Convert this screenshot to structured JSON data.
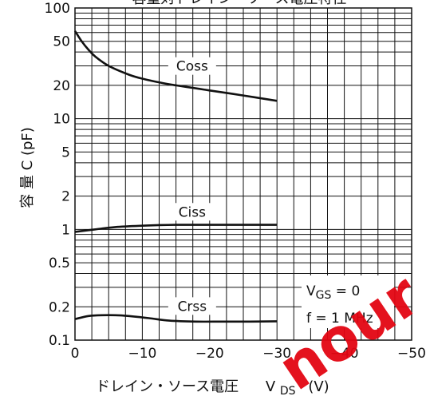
{
  "chart_data": {
    "type": "line",
    "title": "容量対ドレイン・ソース電圧特性",
    "xlabel": "ドレイン・ソース電圧",
    "xlabel_symbol": "V",
    "xlabel_subscript": "DS",
    "xlabel_unit": "(V)",
    "ylabel": "容 量 C (pF)",
    "xlim": [
      0,
      -50
    ],
    "ylim": [
      0.1,
      100
    ],
    "y_scale": "log",
    "grid": true,
    "x_ticks": [
      "0",
      "−10",
      "−20",
      "−30",
      "−40",
      "−50"
    ],
    "x_tick_values": [
      0,
      -10,
      -20,
      -30,
      -40,
      -50
    ],
    "y_ticks": [
      "100",
      "50",
      "20",
      "10",
      "5",
      "2",
      "1",
      "0.5",
      "0.2",
      "0.1"
    ],
    "y_tick_values": [
      100,
      50,
      20,
      10,
      5,
      2,
      1,
      0.5,
      0.2,
      0.1
    ],
    "series": [
      {
        "name": "Coss",
        "x": [
          0,
          -1,
          -2,
          -3,
          -5,
          -8,
          -10,
          -13,
          -15,
          -18,
          -20,
          -25,
          -30
        ],
        "y": [
          62,
          50,
          42,
          36.5,
          30,
          25,
          23,
          21,
          20,
          18.8,
          18,
          16.2,
          14.5
        ]
      },
      {
        "name": "Ciss",
        "x": [
          0,
          -3,
          -6,
          -10,
          -15,
          -20,
          -25,
          -30
        ],
        "y": [
          0.95,
          1.0,
          1.05,
          1.08,
          1.1,
          1.1,
          1.1,
          1.1
        ]
      },
      {
        "name": "Crss",
        "x": [
          0,
          -2,
          -4,
          -6,
          -8,
          -11,
          -14,
          -18,
          -22,
          -26,
          -30
        ],
        "y": [
          0.155,
          0.165,
          0.168,
          0.168,
          0.165,
          0.158,
          0.15,
          0.147,
          0.147,
          0.147,
          0.148
        ]
      }
    ],
    "annotations": [
      {
        "symbol": "V",
        "subscript": "GS",
        "text": " = 0"
      },
      {
        "text": "f = 1 MHz"
      }
    ]
  },
  "watermark": {
    "text": "nour",
    "color": "#e30613"
  },
  "colors": {
    "curve": "#111111",
    "grid": "#111111",
    "background": "#ffffff"
  }
}
